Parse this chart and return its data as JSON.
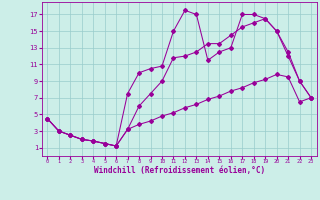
{
  "xlabel": "Windchill (Refroidissement éolien,°C)",
  "bg_color": "#cceee8",
  "line_color": "#990099",
  "grid_color": "#99cccc",
  "xlim": [
    -0.5,
    23.5
  ],
  "ylim": [
    0,
    18.5
  ],
  "xticks": [
    0,
    1,
    2,
    3,
    4,
    5,
    6,
    7,
    8,
    9,
    10,
    11,
    12,
    13,
    14,
    15,
    16,
    17,
    18,
    19,
    20,
    21,
    22,
    23
  ],
  "yticks": [
    1,
    3,
    5,
    7,
    9,
    11,
    13,
    15,
    17
  ],
  "line1_x": [
    0,
    1,
    2,
    3,
    4,
    5,
    6,
    7,
    8,
    9,
    10,
    11,
    12,
    13,
    14,
    15,
    16,
    17,
    18,
    19,
    20,
    21,
    22,
    23
  ],
  "line1_y": [
    4.5,
    3.0,
    2.5,
    2.0,
    1.8,
    1.5,
    1.2,
    7.5,
    10.0,
    10.5,
    10.8,
    15.0,
    17.5,
    17.0,
    11.5,
    12.5,
    13.0,
    17.0,
    17.0,
    16.5,
    15.0,
    12.0,
    9.0,
    7.0
  ],
  "line2_x": [
    0,
    1,
    2,
    3,
    4,
    5,
    6,
    7,
    8,
    9,
    10,
    11,
    12,
    13,
    14,
    15,
    16,
    17,
    18,
    19,
    20,
    21,
    22,
    23
  ],
  "line2_y": [
    4.5,
    3.0,
    2.5,
    2.0,
    1.8,
    1.5,
    1.2,
    3.2,
    6.0,
    7.5,
    9.0,
    11.8,
    12.0,
    12.5,
    13.5,
    13.5,
    14.5,
    15.5,
    16.0,
    16.5,
    15.0,
    12.5,
    9.0,
    7.0
  ],
  "line3_x": [
    0,
    1,
    2,
    3,
    4,
    5,
    6,
    7,
    8,
    9,
    10,
    11,
    12,
    13,
    14,
    15,
    16,
    17,
    18,
    19,
    20,
    21,
    22,
    23
  ],
  "line3_y": [
    4.5,
    3.0,
    2.5,
    2.0,
    1.8,
    1.5,
    1.2,
    3.2,
    3.8,
    4.2,
    4.8,
    5.2,
    5.8,
    6.2,
    6.8,
    7.2,
    7.8,
    8.2,
    8.8,
    9.2,
    9.8,
    9.5,
    6.5,
    7.0
  ]
}
